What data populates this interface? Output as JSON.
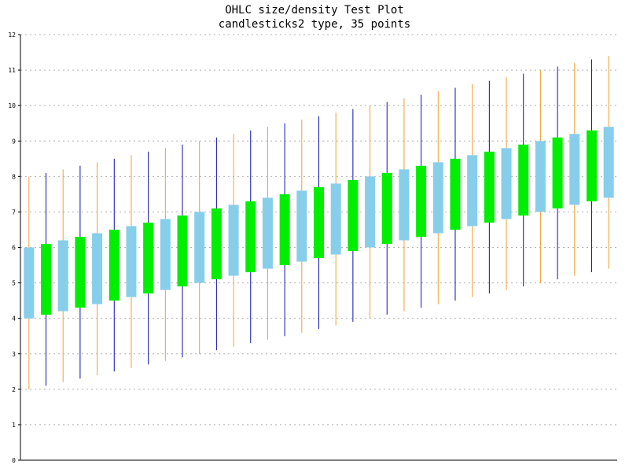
{
  "chart_data": {
    "type": "candlestick",
    "title": "OHLC size/density Test Plot",
    "subtitle": "candlesticks2 type, 35 points",
    "xlabel": "",
    "ylabel": "",
    "ylim": [
      0,
      12
    ],
    "yticks": [
      "0",
      "1",
      "2",
      "3",
      "4",
      "5",
      "6",
      "7",
      "8",
      "9",
      "10",
      "11",
      "12"
    ],
    "grid": true,
    "point_count": 35,
    "colors": {
      "up_body": "#00ee00",
      "down_body": "#87ceeb",
      "wick_a": "#f0a030",
      "wick_b": "#1010b0",
      "grid": "#b0b0b0",
      "axis": "#000000"
    },
    "points": [
      {
        "open": 6.0,
        "high": 8.0,
        "low": 2.0,
        "close": 4.0
      },
      {
        "open": 4.1,
        "high": 8.1,
        "low": 2.1,
        "close": 6.1
      },
      {
        "open": 6.2,
        "high": 8.2,
        "low": 2.2,
        "close": 4.2
      },
      {
        "open": 4.3,
        "high": 8.3,
        "low": 2.3,
        "close": 6.3
      },
      {
        "open": 6.4,
        "high": 8.4,
        "low": 2.4,
        "close": 4.4
      },
      {
        "open": 4.5,
        "high": 8.5,
        "low": 2.5,
        "close": 6.5
      },
      {
        "open": 6.6,
        "high": 8.6,
        "low": 2.6,
        "close": 4.6
      },
      {
        "open": 4.7,
        "high": 8.7,
        "low": 2.7,
        "close": 6.7
      },
      {
        "open": 6.8,
        "high": 8.8,
        "low": 2.8,
        "close": 4.8
      },
      {
        "open": 4.9,
        "high": 8.9,
        "low": 2.9,
        "close": 6.9
      },
      {
        "open": 7.0,
        "high": 9.0,
        "low": 3.0,
        "close": 5.0
      },
      {
        "open": 5.1,
        "high": 9.1,
        "low": 3.1,
        "close": 7.1
      },
      {
        "open": 7.2,
        "high": 9.2,
        "low": 3.2,
        "close": 5.2
      },
      {
        "open": 5.3,
        "high": 9.3,
        "low": 3.3,
        "close": 7.3
      },
      {
        "open": 7.4,
        "high": 9.4,
        "low": 3.4,
        "close": 5.4
      },
      {
        "open": 5.5,
        "high": 9.5,
        "low": 3.5,
        "close": 7.5
      },
      {
        "open": 7.6,
        "high": 9.6,
        "low": 3.6,
        "close": 5.6
      },
      {
        "open": 5.7,
        "high": 9.7,
        "low": 3.7,
        "close": 7.7
      },
      {
        "open": 7.8,
        "high": 9.8,
        "low": 3.8,
        "close": 5.8
      },
      {
        "open": 5.9,
        "high": 9.9,
        "low": 3.9,
        "close": 7.9
      },
      {
        "open": 8.0,
        "high": 10.0,
        "low": 4.0,
        "close": 6.0
      },
      {
        "open": 6.1,
        "high": 10.1,
        "low": 4.1,
        "close": 8.1
      },
      {
        "open": 8.2,
        "high": 10.2,
        "low": 4.2,
        "close": 6.2
      },
      {
        "open": 6.3,
        "high": 10.3,
        "low": 4.3,
        "close": 8.3
      },
      {
        "open": 8.4,
        "high": 10.4,
        "low": 4.4,
        "close": 6.4
      },
      {
        "open": 6.5,
        "high": 10.5,
        "low": 4.5,
        "close": 8.5
      },
      {
        "open": 8.6,
        "high": 10.6,
        "low": 4.6,
        "close": 6.6
      },
      {
        "open": 6.7,
        "high": 10.7,
        "low": 4.7,
        "close": 8.7
      },
      {
        "open": 8.8,
        "high": 10.8,
        "low": 4.8,
        "close": 6.8
      },
      {
        "open": 6.9,
        "high": 10.9,
        "low": 4.9,
        "close": 8.9
      },
      {
        "open": 9.0,
        "high": 11.0,
        "low": 5.0,
        "close": 7.0
      },
      {
        "open": 7.1,
        "high": 11.1,
        "low": 5.1,
        "close": 9.1
      },
      {
        "open": 9.2,
        "high": 11.2,
        "low": 5.2,
        "close": 7.2
      },
      {
        "open": 7.3,
        "high": 11.3,
        "low": 5.3,
        "close": 9.3
      },
      {
        "open": 9.4,
        "high": 11.4,
        "low": 5.4,
        "close": 7.4
      }
    ]
  }
}
